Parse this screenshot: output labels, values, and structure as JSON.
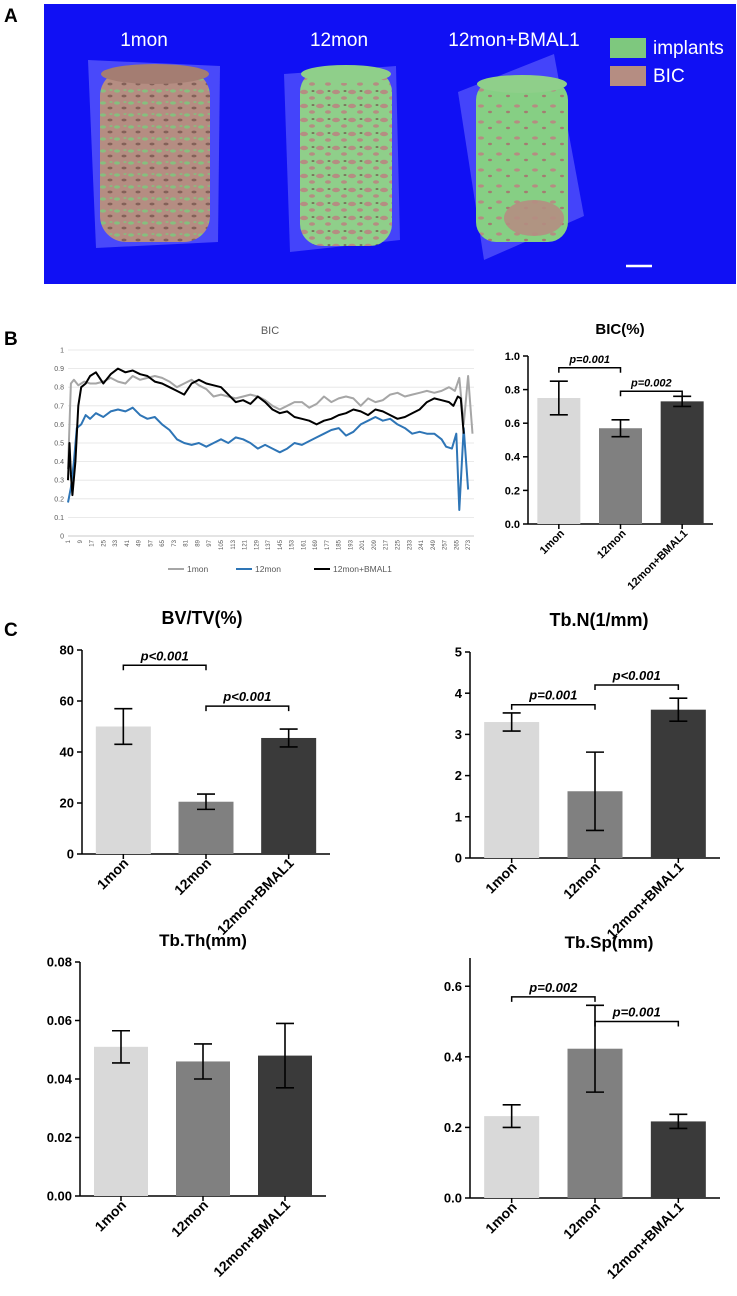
{
  "figure": {
    "panel_labels": {
      "a": "A",
      "b": "B",
      "c": "C"
    }
  },
  "panelA": {
    "background": "#1010f4",
    "groups": [
      "1mon",
      "12mon",
      "12mon+BMAL1"
    ],
    "legend": [
      {
        "label": "implants",
        "color": "#7ec87e"
      },
      {
        "label": "BIC",
        "color": "#b58d82"
      }
    ],
    "scale_bar_label": ""
  },
  "chart_data": [
    {
      "id": "bic_line",
      "type": "line",
      "title": "BIC",
      "xlabel": "",
      "ylabel": "",
      "ylim": [
        0,
        1
      ],
      "yticks": [
        0,
        0.1,
        0.2,
        0.3,
        0.4,
        0.5,
        0.6,
        0.7,
        0.8,
        0.9,
        1
      ],
      "ytick_labels": [
        "0",
        "0.1",
        "0.2",
        "0.3",
        "0.4",
        "0.5",
        "0.6",
        "0.7",
        "0.8",
        "0.9",
        "1"
      ],
      "xlim": [
        1,
        277
      ],
      "xtick_labels": [
        "1",
        "9",
        "17",
        "25",
        "33",
        "41",
        "49",
        "57",
        "65",
        "73",
        "81",
        "89",
        "97",
        "105",
        "113",
        "121",
        "129",
        "137",
        "145",
        "153",
        "161",
        "169",
        "177",
        "185",
        "193",
        "201",
        "209",
        "217",
        "225",
        "233",
        "241",
        "249",
        "257",
        "265",
        "273"
      ],
      "grid": true,
      "legend_position": "bottom",
      "series": [
        {
          "name": "1mon",
          "color": "#a6a6a6",
          "x": [
            1,
            3,
            5,
            8,
            12,
            16,
            20,
            25,
            30,
            35,
            40,
            45,
            50,
            55,
            60,
            65,
            70,
            75,
            80,
            85,
            90,
            95,
            100,
            105,
            110,
            115,
            120,
            125,
            130,
            135,
            140,
            145,
            150,
            155,
            160,
            165,
            170,
            175,
            180,
            185,
            190,
            195,
            200,
            205,
            210,
            215,
            220,
            225,
            230,
            235,
            240,
            245,
            250,
            255,
            260,
            264,
            267,
            270,
            273,
            276
          ],
          "y": [
            0.36,
            0.82,
            0.84,
            0.81,
            0.83,
            0.82,
            0.82,
            0.83,
            0.85,
            0.83,
            0.82,
            0.86,
            0.84,
            0.85,
            0.86,
            0.85,
            0.83,
            0.8,
            0.82,
            0.84,
            0.81,
            0.79,
            0.75,
            0.76,
            0.75,
            0.74,
            0.75,
            0.76,
            0.75,
            0.73,
            0.7,
            0.68,
            0.7,
            0.72,
            0.72,
            0.69,
            0.71,
            0.75,
            0.72,
            0.74,
            0.75,
            0.74,
            0.7,
            0.74,
            0.72,
            0.73,
            0.76,
            0.77,
            0.75,
            0.76,
            0.77,
            0.78,
            0.77,
            0.78,
            0.8,
            0.78,
            0.85,
            0.6,
            0.86,
            0.55
          ]
        },
        {
          "name": "12mon",
          "color": "#2e75b6",
          "x": [
            1,
            3,
            5,
            7,
            10,
            13,
            16,
            20,
            25,
            30,
            35,
            40,
            45,
            50,
            55,
            60,
            65,
            70,
            75,
            80,
            85,
            90,
            95,
            100,
            105,
            110,
            115,
            120,
            125,
            130,
            135,
            140,
            145,
            150,
            155,
            160,
            165,
            170,
            175,
            180,
            185,
            190,
            195,
            200,
            205,
            210,
            215,
            220,
            225,
            230,
            235,
            240,
            245,
            250,
            255,
            258,
            262,
            265,
            267,
            270,
            273
          ],
          "y": [
            0.18,
            0.26,
            0.4,
            0.58,
            0.6,
            0.65,
            0.63,
            0.66,
            0.64,
            0.67,
            0.68,
            0.67,
            0.69,
            0.65,
            0.63,
            0.64,
            0.6,
            0.57,
            0.52,
            0.5,
            0.49,
            0.5,
            0.48,
            0.5,
            0.52,
            0.5,
            0.53,
            0.52,
            0.5,
            0.47,
            0.49,
            0.47,
            0.45,
            0.47,
            0.5,
            0.49,
            0.51,
            0.53,
            0.55,
            0.57,
            0.58,
            0.54,
            0.56,
            0.6,
            0.62,
            0.64,
            0.62,
            0.63,
            0.6,
            0.58,
            0.55,
            0.56,
            0.55,
            0.55,
            0.52,
            0.48,
            0.47,
            0.55,
            0.14,
            0.58,
            0.25
          ]
        },
        {
          "name": "12mon+BMAL1",
          "color": "#000000",
          "x": [
            1,
            2,
            3,
            4,
            6,
            8,
            10,
            13,
            16,
            20,
            25,
            30,
            35,
            40,
            45,
            50,
            55,
            60,
            65,
            70,
            75,
            80,
            85,
            90,
            95,
            100,
            105,
            110,
            115,
            120,
            125,
            130,
            135,
            140,
            145,
            150,
            155,
            160,
            165,
            170,
            175,
            180,
            185,
            190,
            195,
            200,
            205,
            210,
            215,
            220,
            225,
            230,
            235,
            240,
            245,
            250,
            255,
            260,
            263,
            266,
            268,
            270
          ],
          "y": [
            0.3,
            0.5,
            0.33,
            0.22,
            0.4,
            0.7,
            0.8,
            0.82,
            0.86,
            0.88,
            0.82,
            0.87,
            0.9,
            0.88,
            0.89,
            0.87,
            0.86,
            0.83,
            0.82,
            0.8,
            0.78,
            0.76,
            0.82,
            0.84,
            0.82,
            0.81,
            0.8,
            0.76,
            0.72,
            0.73,
            0.71,
            0.75,
            0.72,
            0.68,
            0.66,
            0.67,
            0.64,
            0.63,
            0.62,
            0.6,
            0.62,
            0.63,
            0.65,
            0.66,
            0.68,
            0.67,
            0.65,
            0.68,
            0.67,
            0.65,
            0.63,
            0.64,
            0.66,
            0.68,
            0.72,
            0.74,
            0.73,
            0.72,
            0.7,
            0.75,
            0.74,
            0.55
          ]
        }
      ]
    },
    {
      "id": "bic_bar",
      "type": "bar",
      "title": "BIC(%)",
      "xlabel": "",
      "ylabel": "",
      "categories": [
        "1mon",
        "12mon",
        "12mon+BMAL1"
      ],
      "values": [
        0.75,
        0.57,
        0.73
      ],
      "errors": [
        0.1,
        0.05,
        0.03
      ],
      "colors": [
        "#d9d9d9",
        "#808080",
        "#3a3a3a"
      ],
      "ylim": [
        0,
        1.0
      ],
      "yticks": [
        0,
        0.2,
        0.4,
        0.6,
        0.8,
        1.0
      ],
      "ytick_labels": [
        "0.0",
        "0.2",
        "0.4",
        "0.6",
        "0.8",
        "1.0"
      ],
      "annotations": [
        {
          "text": "p=0.001",
          "pair": [
            0,
            1
          ],
          "y": 0.93
        },
        {
          "text": "p=0.002",
          "pair": [
            1,
            2
          ],
          "y": 0.79
        }
      ]
    },
    {
      "id": "bvtv",
      "type": "bar",
      "title": "BV/TV(%)",
      "xlabel": "",
      "ylabel": "",
      "categories": [
        "1mon",
        "12mon",
        "12mon+BMAL1"
      ],
      "values": [
        50,
        20.5,
        45.5
      ],
      "errors": [
        7,
        3,
        3.5
      ],
      "colors": [
        "#d9d9d9",
        "#808080",
        "#3a3a3a"
      ],
      "ylim": [
        0,
        80
      ],
      "yticks": [
        0,
        20,
        40,
        60,
        80
      ],
      "ytick_labels": [
        "0",
        "20",
        "40",
        "60",
        "80"
      ],
      "annotations": [
        {
          "text": "p<0.001",
          "pair": [
            0,
            1
          ],
          "y": 74
        },
        {
          "text": "p<0.001",
          "pair": [
            1,
            2
          ],
          "y": 58
        }
      ]
    },
    {
      "id": "tbn",
      "type": "bar",
      "title": "Tb.N(1/mm)",
      "xlabel": "",
      "ylabel": "",
      "categories": [
        "1mon",
        "12mon",
        "12mon+BMAL1"
      ],
      "values": [
        3.3,
        1.62,
        3.6
      ],
      "errors": [
        0.22,
        0.95,
        0.28
      ],
      "colors": [
        "#d9d9d9",
        "#808080",
        "#3a3a3a"
      ],
      "ylim": [
        0,
        5
      ],
      "yticks": [
        0,
        1,
        2,
        3,
        4,
        5
      ],
      "ytick_labels": [
        "0",
        "1",
        "2",
        "3",
        "4",
        "5"
      ],
      "annotations": [
        {
          "text": "p=0.001",
          "pair": [
            0,
            1
          ],
          "y": 3.72
        },
        {
          "text": "p<0.001",
          "pair": [
            1,
            2
          ],
          "y": 4.2
        }
      ]
    },
    {
      "id": "tbth",
      "type": "bar",
      "title": "Tb.Th(mm)",
      "xlabel": "",
      "ylabel": "",
      "categories": [
        "1mon",
        "12mon",
        "12mon+BMAL1"
      ],
      "values": [
        0.051,
        0.046,
        0.048
      ],
      "errors": [
        0.0055,
        0.006,
        0.011
      ],
      "colors": [
        "#d9d9d9",
        "#808080",
        "#3a3a3a"
      ],
      "ylim": [
        0,
        0.08
      ],
      "yticks": [
        0,
        0.02,
        0.04,
        0.06,
        0.08
      ],
      "ytick_labels": [
        "0.00",
        "0.02",
        "0.04",
        "0.06",
        "0.08"
      ],
      "annotations": []
    },
    {
      "id": "tbsp",
      "type": "bar",
      "title": "Tb.Sp(mm)",
      "xlabel": "",
      "ylabel": "",
      "categories": [
        "1mon",
        "12mon",
        "12mon+BMAL1"
      ],
      "values": [
        0.232,
        0.423,
        0.217
      ],
      "errors": [
        0.032,
        0.123,
        0.02
      ],
      "colors": [
        "#d9d9d9",
        "#808080",
        "#3a3a3a"
      ],
      "ylim": [
        0,
        0.68
      ],
      "yticks": [
        0,
        0.2,
        0.4,
        0.6
      ],
      "ytick_labels": [
        "0.0",
        "0.2",
        "0.4",
        "0.6"
      ],
      "annotations": [
        {
          "text": "p=0.002",
          "pair": [
            0,
            1
          ],
          "y": 0.57
        },
        {
          "text": "p=0.001",
          "pair": [
            1,
            2
          ],
          "y": 0.5
        }
      ]
    }
  ]
}
